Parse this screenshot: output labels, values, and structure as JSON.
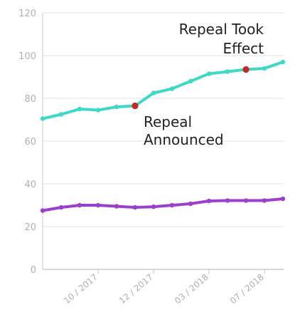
{
  "chart_data": {
    "type": "line",
    "title": "",
    "xlabel": "",
    "ylabel": "",
    "ylim": [
      0,
      120
    ],
    "yticks": [
      0,
      20,
      40,
      60,
      80,
      100,
      120
    ],
    "grid": true,
    "legend": "none",
    "x_tick_labels": [
      "10 / 2017",
      "12 / 2017",
      "03 / 2018",
      "07 / 2018"
    ],
    "x_tick_positions": [
      3,
      6,
      9,
      12
    ],
    "x": [
      0,
      1,
      2,
      3,
      4,
      5,
      6,
      7,
      8,
      9,
      10,
      11,
      12,
      13
    ],
    "series": [
      {
        "color": "#3dd9c6",
        "values": [
          70.5,
          72.5,
          75,
          74.5,
          76,
          76.5,
          82.5,
          84.5,
          88,
          91.5,
          92.5,
          93.5,
          94,
          97
        ]
      },
      {
        "color": "#9b3fcf",
        "values": [
          27.5,
          29,
          30,
          30,
          29.5,
          29,
          29.3,
          30,
          30.7,
          32,
          32.2,
          32.2,
          32.2,
          33
        ]
      }
    ],
    "highlight_color": "#c62828",
    "highlights": [
      {
        "series": 0,
        "index": 5
      },
      {
        "series": 0,
        "index": 11
      }
    ],
    "annotations": [
      {
        "text": [
          "Repeal",
          "Announced"
        ]
      },
      {
        "text": [
          "Repeal Took",
          "Effect"
        ]
      }
    ]
  },
  "colors": {
    "grid": "#e3e3e3",
    "axis": "#cccccc",
    "tick_text": "#b0b0b0",
    "annotation_text": "#222222"
  }
}
